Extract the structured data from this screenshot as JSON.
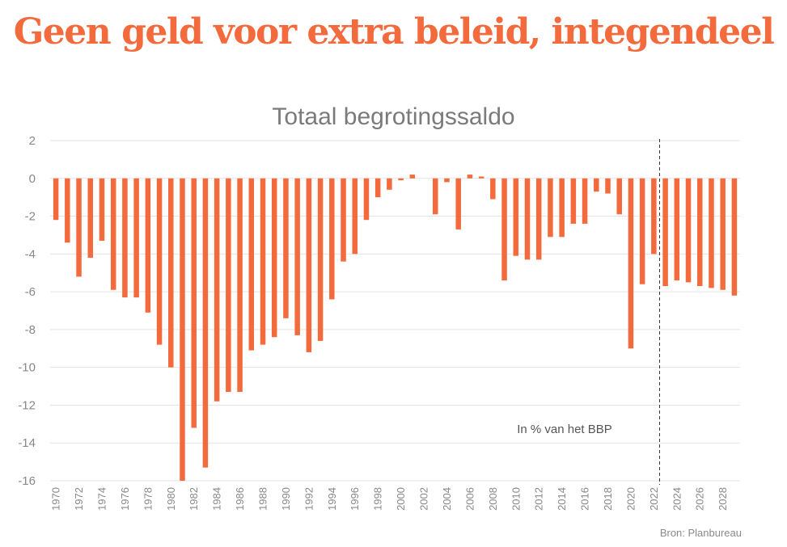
{
  "headline": "Geen geld voor extra beleid, integendeel",
  "source": "Bron: Planbureau",
  "colors": {
    "headline": "#f36a3d",
    "bar": "#f36a3d",
    "grid": "#e3e3e3",
    "tick_text": "#888888"
  },
  "chart_data": {
    "type": "bar",
    "title": "Totaal begrotingssaldo",
    "annotation": "In % van het BBP",
    "xlabel": "",
    "ylabel": "",
    "ylim": [
      -16,
      2
    ],
    "yticks": [
      2,
      0,
      -2,
      -4,
      -6,
      -8,
      -10,
      -12,
      -14,
      -16
    ],
    "xtick_labels": [
      "1970",
      "1972",
      "1974",
      "1976",
      "1978",
      "1980",
      "1982",
      "1984",
      "1986",
      "1988",
      "1990",
      "1992",
      "1994",
      "1996",
      "1998",
      "2000",
      "2002",
      "2004",
      "2006",
      "2008",
      "2010",
      "2012",
      "2014",
      "2016",
      "2018",
      "2020",
      "2022",
      "2024",
      "2026",
      "2028"
    ],
    "forecast_start": "2023",
    "categories": [
      "1970",
      "1971",
      "1972",
      "1973",
      "1974",
      "1975",
      "1976",
      "1977",
      "1978",
      "1979",
      "1980",
      "1981",
      "1982",
      "1983",
      "1984",
      "1985",
      "1986",
      "1987",
      "1988",
      "1989",
      "1990",
      "1991",
      "1992",
      "1993",
      "1994",
      "1995",
      "1996",
      "1997",
      "1998",
      "1999",
      "2000",
      "2001",
      "2002",
      "2003",
      "2004",
      "2005",
      "2006",
      "2007",
      "2008",
      "2009",
      "2010",
      "2011",
      "2012",
      "2013",
      "2014",
      "2015",
      "2016",
      "2017",
      "2018",
      "2019",
      "2020",
      "2021",
      "2022",
      "2023",
      "2024",
      "2025",
      "2026",
      "2027",
      "2028",
      "2029"
    ],
    "values": [
      -2.2,
      -3.4,
      -5.2,
      -4.2,
      -3.3,
      -5.9,
      -6.3,
      -6.3,
      -7.1,
      -8.8,
      -10.0,
      -16.0,
      -13.2,
      -15.3,
      -11.8,
      -11.3,
      -11.3,
      -9.1,
      -8.8,
      -8.4,
      -7.4,
      -8.3,
      -9.2,
      -8.6,
      -6.4,
      -4.4,
      -4.0,
      -2.2,
      -1.0,
      -0.6,
      -0.1,
      0.2,
      0.0,
      -1.9,
      -0.2,
      -2.7,
      0.2,
      0.1,
      -1.1,
      -5.4,
      -4.1,
      -4.3,
      -4.3,
      -3.1,
      -3.1,
      -2.4,
      -2.4,
      -0.7,
      -0.8,
      -1.9,
      -9.0,
      -5.6,
      -4.0,
      -5.7,
      -5.4,
      -5.5,
      -5.7,
      -5.8,
      -5.9,
      -6.2
    ]
  }
}
